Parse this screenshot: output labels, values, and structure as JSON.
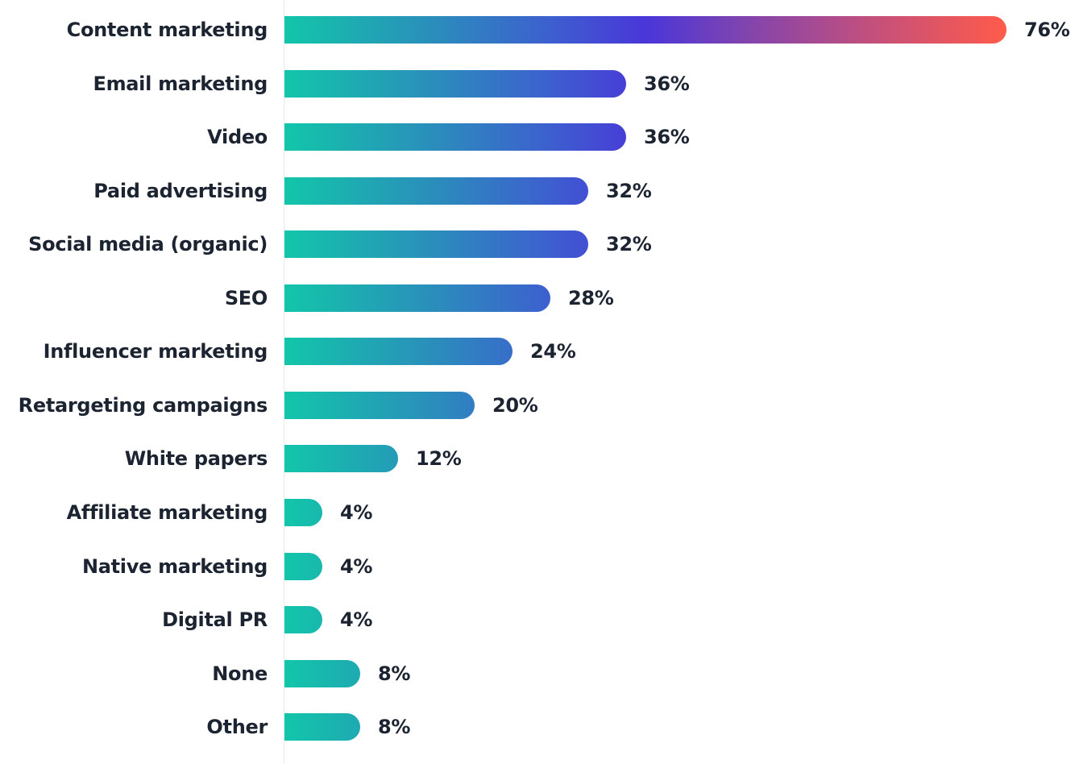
{
  "chart_data": {
    "type": "bar",
    "orientation": "horizontal",
    "title": "",
    "xlabel": "",
    "ylabel": "",
    "xlim": [
      0,
      76
    ],
    "grid": false,
    "legend": null,
    "categories": [
      "Content marketing",
      "Email marketing",
      "Video",
      "Paid advertising",
      "Social media (organic)",
      "SEO",
      "Influencer marketing",
      "Retargeting campaigns",
      "White papers",
      "Affiliate marketing",
      "Native marketing",
      "Digital PR",
      "None",
      "Other"
    ],
    "values": [
      76,
      36,
      36,
      32,
      32,
      28,
      24,
      20,
      12,
      4,
      4,
      4,
      8,
      8
    ],
    "value_labels": [
      "76%",
      "36%",
      "36%",
      "32%",
      "32%",
      "28%",
      "24%",
      "20%",
      "12%",
      "4%",
      "4%",
      "4%",
      "8%",
      "8%"
    ],
    "unit": "%",
    "colors": {
      "gradient_start": "#12c6a9",
      "gradient_mid": "#4a36d9",
      "gradient_end": "#ff5b4a",
      "text": "#1c2431"
    }
  },
  "rows": [
    {
      "label": "Content marketing",
      "value": 76,
      "display": "76%"
    },
    {
      "label": "Email marketing",
      "value": 36,
      "display": "36%"
    },
    {
      "label": "Video",
      "value": 36,
      "display": "36%"
    },
    {
      "label": "Paid advertising",
      "value": 32,
      "display": "32%"
    },
    {
      "label": "Social media (organic)",
      "value": 32,
      "display": "32%"
    },
    {
      "label": "SEO",
      "value": 28,
      "display": "28%"
    },
    {
      "label": "Influencer marketing",
      "value": 24,
      "display": "24%"
    },
    {
      "label": "Retargeting campaigns",
      "value": 20,
      "display": "20%"
    },
    {
      "label": "White papers",
      "value": 12,
      "display": "12%"
    },
    {
      "label": "Affiliate marketing",
      "value": 4,
      "display": "4%"
    },
    {
      "label": "Native marketing",
      "value": 4,
      "display": "4%"
    },
    {
      "label": "Digital PR",
      "value": 4,
      "display": "4%"
    },
    {
      "label": "None",
      "value": 8,
      "display": "8%"
    },
    {
      "label": "Other",
      "value": 8,
      "display": "8%"
    }
  ]
}
